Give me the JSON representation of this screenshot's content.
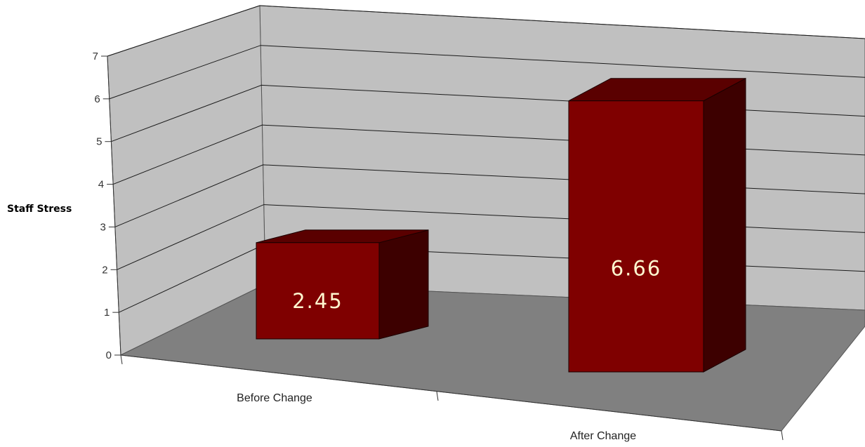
{
  "chart_data": {
    "type": "bar",
    "style": "3d-column",
    "categories": [
      "Before Change",
      "After Change"
    ],
    "values": [
      2.45,
      6.66
    ],
    "data_labels": [
      "2.45",
      "6.66"
    ],
    "title": "",
    "xlabel": "",
    "ylabel": "Staff Stress",
    "ylim": [
      0,
      7
    ],
    "yticks": [
      "0",
      "1",
      "2",
      "3",
      "4",
      "5",
      "6",
      "7"
    ],
    "grid": true,
    "legend": "none",
    "colors": {
      "bar_front": "#7f0000",
      "bar_top": "#5a0000",
      "bar_side": "#3d0000",
      "wall": "#c0c0c0",
      "floor": "#808080"
    }
  }
}
